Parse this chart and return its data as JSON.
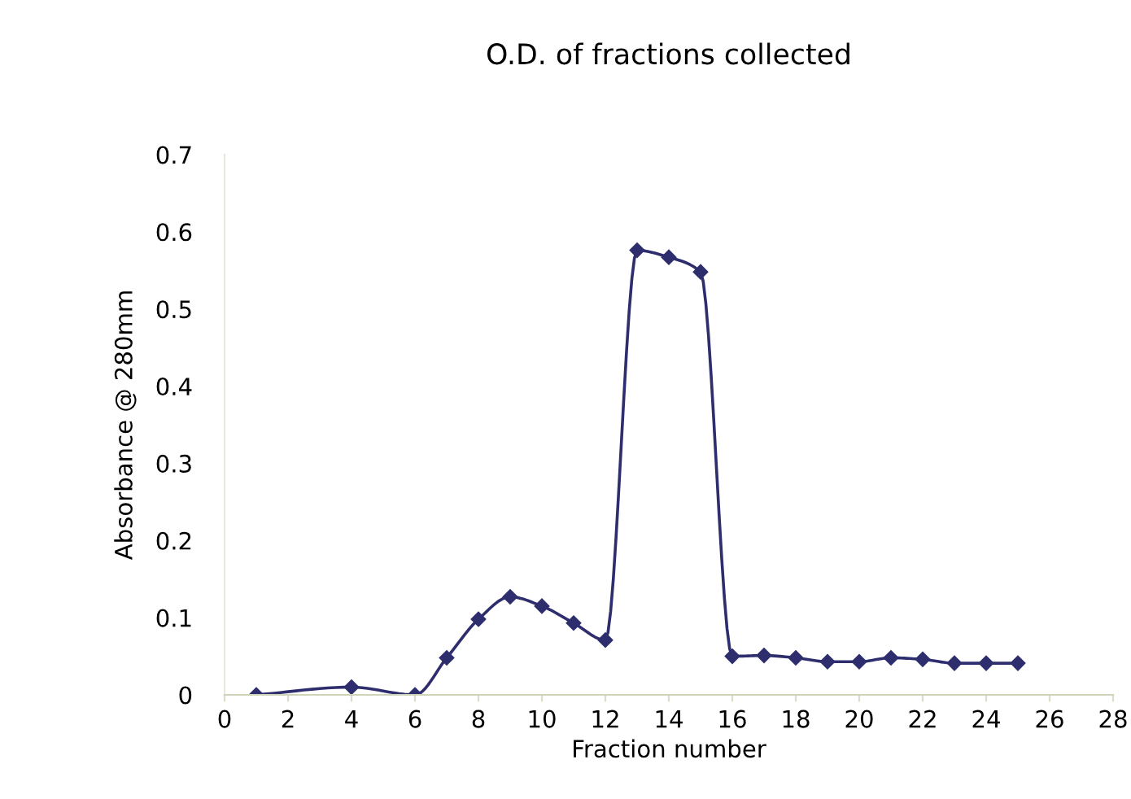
{
  "chart_data": {
    "type": "line",
    "title": "O.D. of fractions collected",
    "xlabel": "Fraction number",
    "ylabel": "Absorbance @ 280mm",
    "x": [
      1,
      4,
      6,
      7,
      8,
      9,
      10,
      11,
      12,
      13,
      14,
      15,
      16,
      17,
      18,
      19,
      20,
      21,
      22,
      23,
      24,
      25
    ],
    "series": [
      {
        "color": "#2e2e6e",
        "values": [
          0,
          0.01,
          0,
          0.048,
          0.098,
          0.127,
          0.115,
          0.093,
          0.071,
          0.576,
          0.567,
          0.548,
          0.05,
          0.051,
          0.048,
          0.043,
          0.043,
          0.048,
          0.046,
          0.041,
          0.041,
          0.041
        ]
      }
    ],
    "xlim": [
      0,
      28
    ],
    "xticks": [
      0,
      2,
      4,
      6,
      8,
      10,
      12,
      14,
      16,
      18,
      20,
      22,
      24,
      26,
      28
    ],
    "ylim": [
      0,
      0.7
    ],
    "yticks": [
      0,
      0.1,
      0.2,
      0.3,
      0.4,
      0.5,
      0.6,
      0.7
    ],
    "marker": "diamond",
    "line_style": "solid",
    "grid": false,
    "legend": false
  }
}
